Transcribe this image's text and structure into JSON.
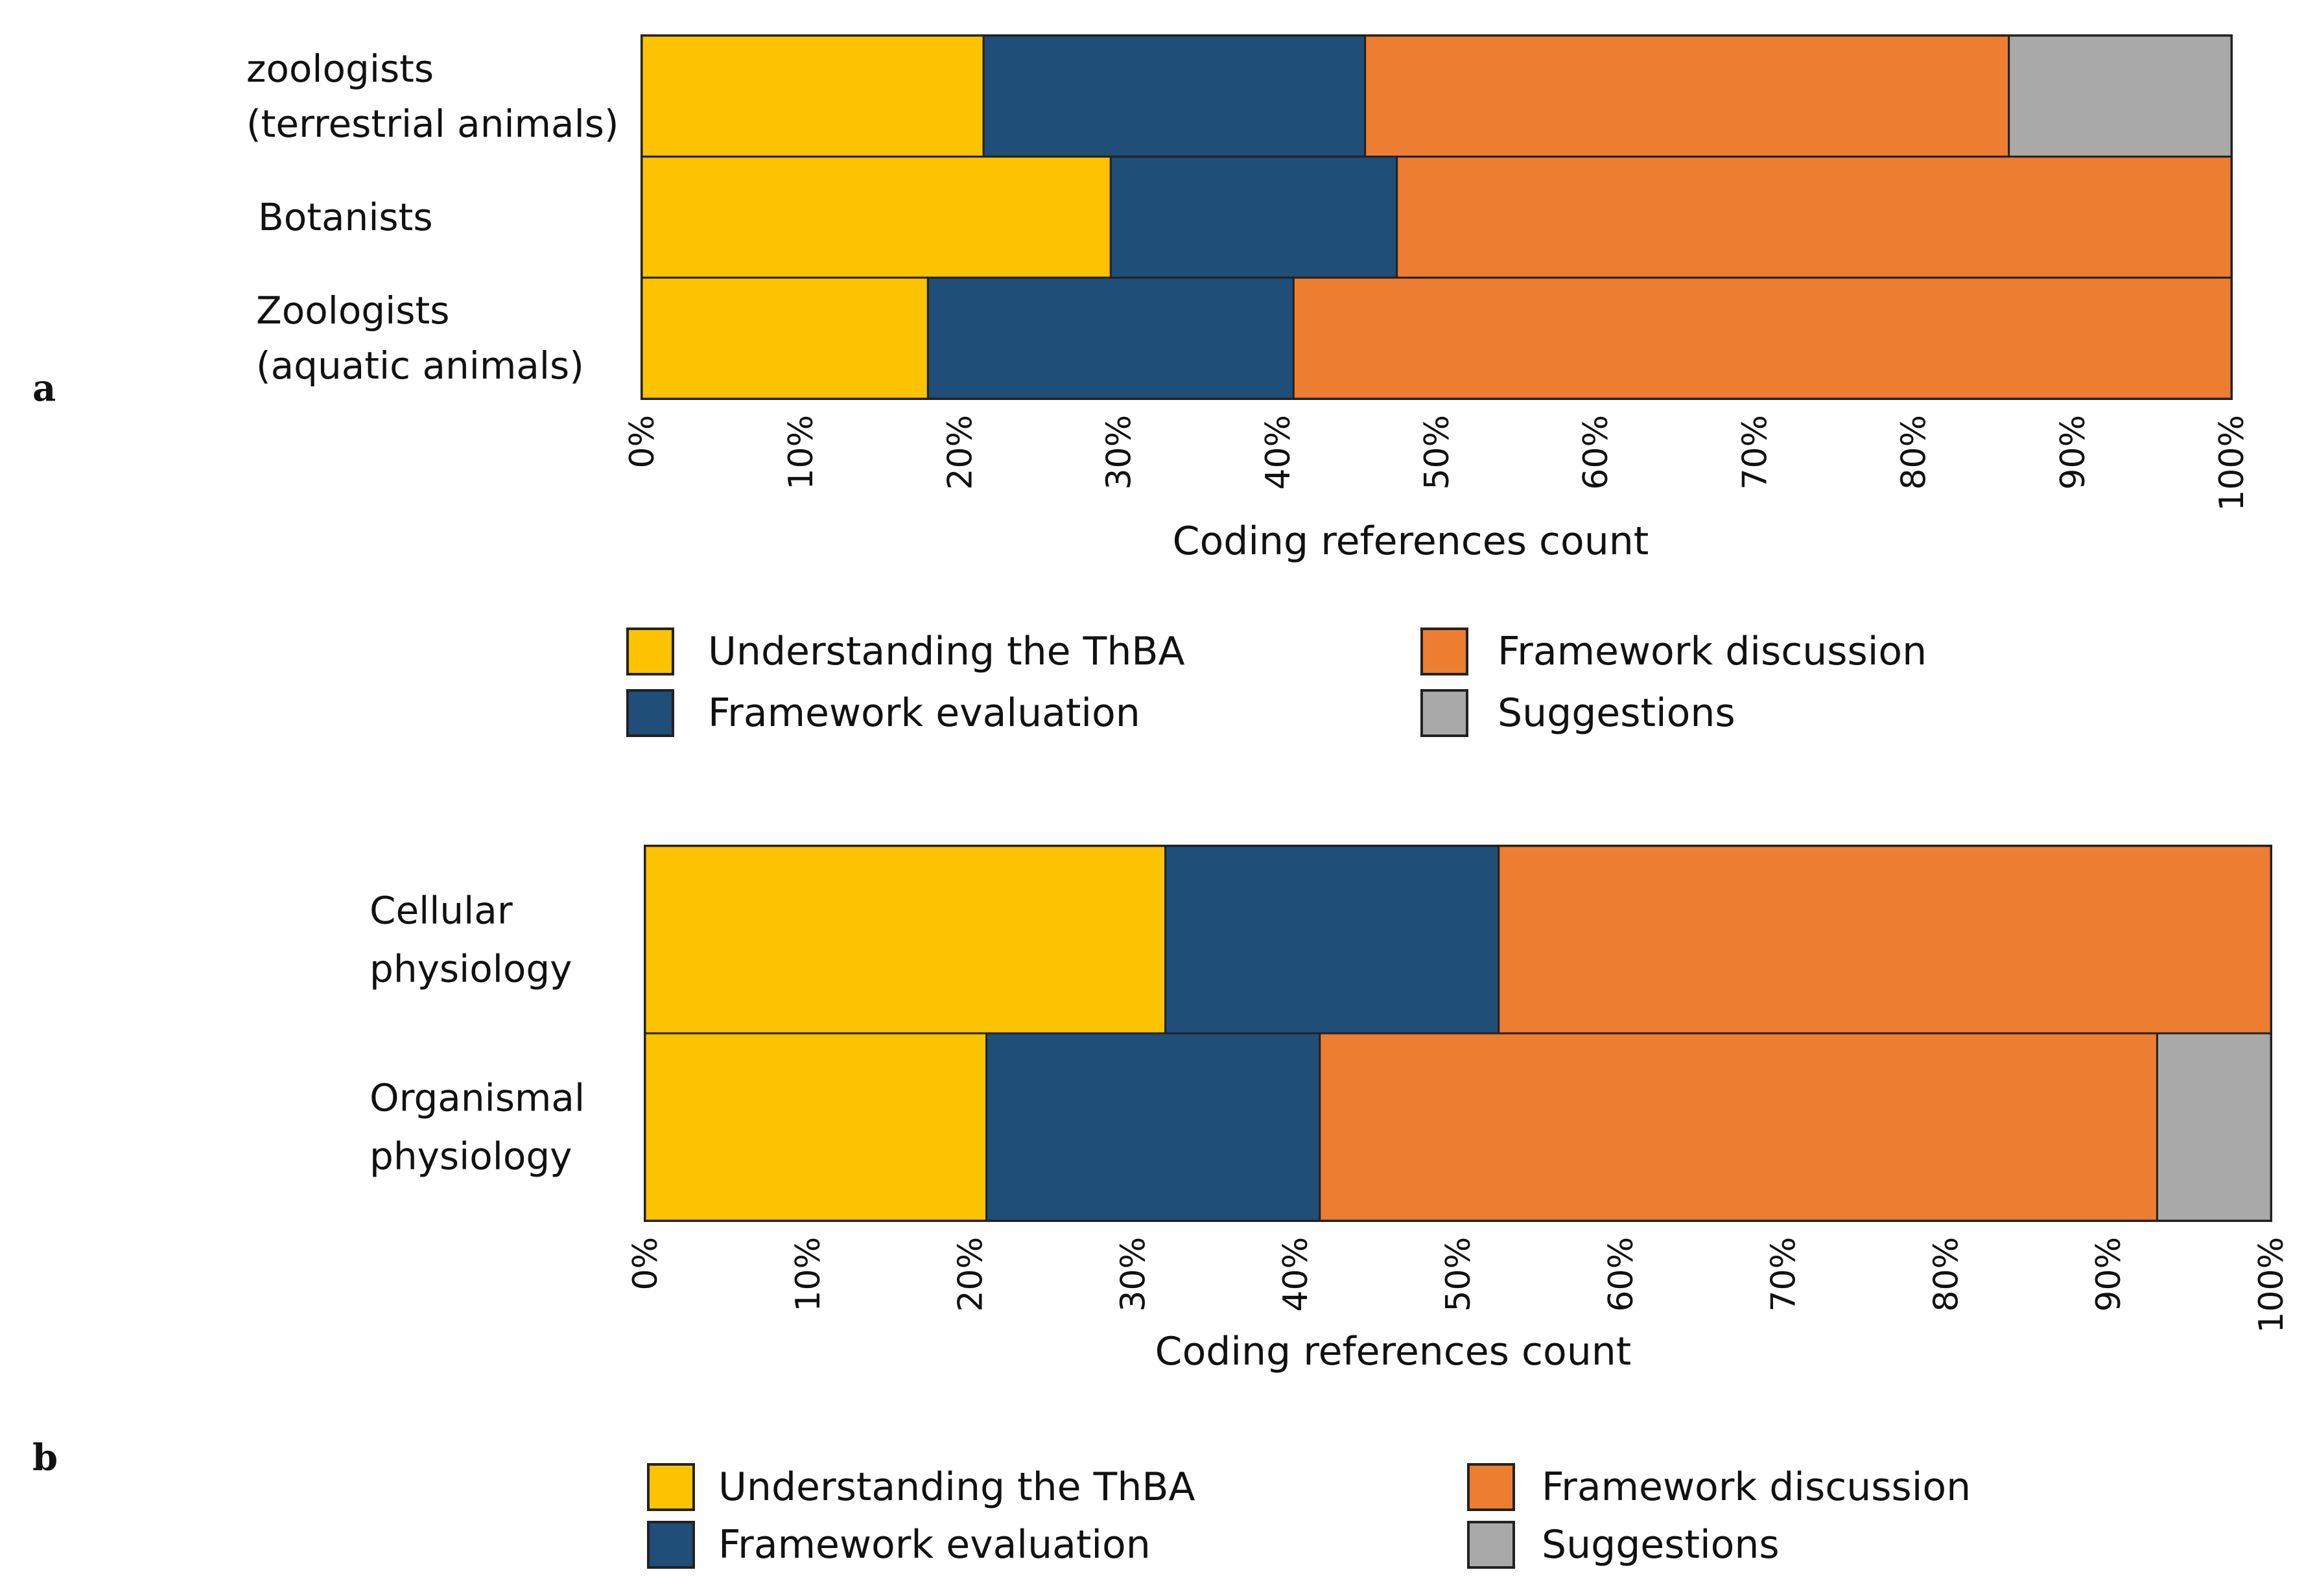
{
  "figure": {
    "panel_labels": [
      "a",
      "b"
    ]
  },
  "colors": {
    "understanding": "#FDC300",
    "evaluation": "#1F4E79",
    "discussion": "#ED7D31",
    "suggestions": "#A9A9A9",
    "border": "#222222",
    "text": "#111111"
  },
  "chart_data": [
    {
      "type": "bar",
      "orientation": "horizontal",
      "stacked": true,
      "percent": true,
      "panel": "a",
      "categories": [
        "zoologists (terrestrial animals)",
        "Botanists",
        "Zoologists (aquatic animals)"
      ],
      "category_lines": [
        [
          "zoologists",
          "(terrestrial animals)"
        ],
        [
          "Botanists"
        ],
        [
          "Zoologists",
          "(aquatic animals)"
        ]
      ],
      "series": [
        {
          "name": "Understanding the ThBA",
          "key": "understanding",
          "values": [
            21.5,
            29.5,
            18.0
          ]
        },
        {
          "name": "Framework evaluation",
          "key": "evaluation",
          "values": [
            24.0,
            18.0,
            23.0
          ]
        },
        {
          "name": "Framework discussion",
          "key": "discussion",
          "values": [
            40.5,
            52.5,
            59.0
          ]
        },
        {
          "name": "Suggestions",
          "key": "suggestions",
          "values": [
            14.0,
            0,
            0
          ]
        }
      ],
      "xlabel": "Coding references count",
      "xticks": [
        "0%",
        "10%",
        "20%",
        "30%",
        "40%",
        "50%",
        "60%",
        "70%",
        "80%",
        "90%",
        "100%"
      ],
      "xlim": [
        0,
        100
      ],
      "legend": {
        "position": "bottom",
        "order": [
          "understanding",
          "discussion",
          "evaluation",
          "suggestions"
        ],
        "labels": [
          "Understanding the ThBA",
          "Framework discussion",
          "Framework evaluation",
          "Suggestions"
        ]
      }
    },
    {
      "type": "bar",
      "orientation": "horizontal",
      "stacked": true,
      "percent": true,
      "panel": "b",
      "categories": [
        "Cellular physiology",
        "Organismal physiology"
      ],
      "category_lines": [
        [
          "Cellular",
          "physiology"
        ],
        [
          "Organismal",
          "physiology"
        ]
      ],
      "series": [
        {
          "name": "Understanding the ThBA",
          "key": "understanding",
          "values": [
            32.0,
            21.0
          ]
        },
        {
          "name": "Framework evaluation",
          "key": "evaluation",
          "values": [
            20.5,
            20.5
          ]
        },
        {
          "name": "Framework discussion",
          "key": "discussion",
          "values": [
            47.5,
            51.5
          ]
        },
        {
          "name": "Suggestions",
          "key": "suggestions",
          "values": [
            0,
            7.0
          ]
        }
      ],
      "xlabel": "Coding references count",
      "xticks": [
        "0%",
        "10%",
        "20%",
        "30%",
        "40%",
        "50%",
        "60%",
        "70%",
        "80%",
        "90%",
        "100%"
      ],
      "xlim": [
        0,
        100
      ],
      "legend": {
        "position": "bottom",
        "order": [
          "understanding",
          "discussion",
          "evaluation",
          "suggestions"
        ],
        "labels": [
          "Understanding the ThBA",
          "Framework discussion",
          "Framework evaluation",
          "Suggestions"
        ]
      }
    }
  ]
}
